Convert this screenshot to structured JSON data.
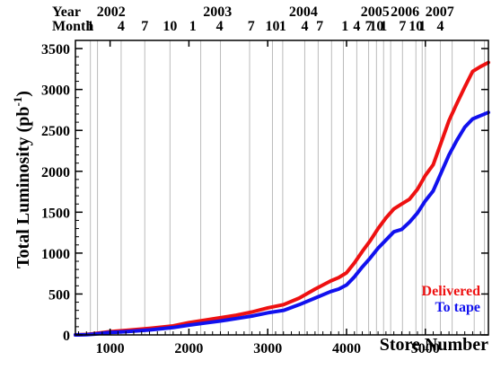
{
  "chart_data": {
    "type": "line",
    "xlabel": "Store Number",
    "ylabel": "Total Luminosity (pb",
    "ylabel_sup": "-1",
    "ylabel_close": ")",
    "xlim": [
      560,
      5800
    ],
    "ylim": [
      0,
      3600
    ],
    "xticks": [
      1000,
      2000,
      3000,
      4000,
      5000
    ],
    "yticks": [
      0,
      500,
      1000,
      1500,
      2000,
      2500,
      3000,
      3500
    ],
    "top_rows": [
      {
        "label": "Year",
        "marks": [
          {
            "text": "2002",
            "x": 830
          },
          {
            "text": "2003",
            "x": 2180
          },
          {
            "text": "2004",
            "x": 3270
          },
          {
            "text": "2005",
            "x": 4180
          },
          {
            "text": "2006",
            "x": 4560
          },
          {
            "text": "2007",
            "x": 5000
          }
        ]
      },
      {
        "label": "Month",
        "marks": [
          {
            "text": "1",
            "x": 750
          },
          {
            "text": "4",
            "x": 1140
          },
          {
            "text": "7",
            "x": 1440
          },
          {
            "text": "10",
            "x": 1760
          },
          {
            "text": "1",
            "x": 2050
          },
          {
            "text": "4",
            "x": 2390
          },
          {
            "text": "7",
            "x": 2790
          },
          {
            "text": "10",
            "x": 3060
          },
          {
            "text": "1",
            "x": 3190
          },
          {
            "text": "4",
            "x": 3470
          },
          {
            "text": "7",
            "x": 3660
          },
          {
            "text": "1",
            "x": 3980
          },
          {
            "text": "4",
            "x": 4130
          },
          {
            "text": "7",
            "x": 4280
          },
          {
            "text": "10",
            "x": 4380
          },
          {
            "text": "1",
            "x": 4470
          },
          {
            "text": "7",
            "x": 4710
          },
          {
            "text": "10",
            "x": 4880
          },
          {
            "text": "1",
            "x": 4960
          },
          {
            "text": "4",
            "x": 5190
          }
        ]
      }
    ],
    "month_lines": [
      750,
      840,
      1140,
      1440,
      1760,
      2150,
      2400,
      2770,
      3060,
      3190,
      3470,
      3640,
      3810,
      3960,
      4130,
      4280,
      4380,
      4470,
      4560,
      4710,
      4880,
      4960,
      5000,
      5190,
      5340,
      5620,
      5750
    ],
    "series": [
      {
        "name": "Delivered",
        "color": "#ee1111",
        "x": [
          560,
          700,
          800,
          1000,
          1200,
          1500,
          1800,
          2000,
          2200,
          2400,
          2600,
          2800,
          3000,
          3200,
          3400,
          3600,
          3800,
          3900,
          4000,
          4100,
          4200,
          4300,
          4400,
          4500,
          4600,
          4700,
          4800,
          4900,
          5000,
          5100,
          5200,
          5300,
          5400,
          5500,
          5600,
          5700,
          5800
        ],
        "values": [
          0,
          5,
          15,
          40,
          55,
          80,
          110,
          150,
          180,
          210,
          240,
          280,
          330,
          370,
          450,
          560,
          660,
          700,
          760,
          880,
          1020,
          1150,
          1300,
          1430,
          1540,
          1600,
          1660,
          1780,
          1950,
          2080,
          2350,
          2620,
          2830,
          3030,
          3220,
          3280,
          3330
        ]
      },
      {
        "name": "To tape",
        "color": "#1111ee",
        "x": [
          560,
          700,
          800,
          1000,
          1200,
          1500,
          1800,
          2000,
          2200,
          2400,
          2600,
          2800,
          3000,
          3200,
          3400,
          3600,
          3800,
          3900,
          4000,
          4100,
          4200,
          4300,
          4400,
          4500,
          4600,
          4700,
          4800,
          4900,
          5000,
          5100,
          5200,
          5300,
          5400,
          5500,
          5600,
          5700,
          5800
        ],
        "values": [
          0,
          3,
          10,
          30,
          40,
          60,
          90,
          120,
          145,
          170,
          200,
          230,
          270,
          300,
          370,
          450,
          530,
          560,
          610,
          710,
          830,
          940,
          1060,
          1160,
          1260,
          1290,
          1380,
          1490,
          1640,
          1760,
          1980,
          2200,
          2380,
          2540,
          2640,
          2680,
          2720
        ]
      }
    ],
    "legend_placement": "bottom-right",
    "legend_entries": [
      "Delivered",
      "To tape"
    ]
  }
}
